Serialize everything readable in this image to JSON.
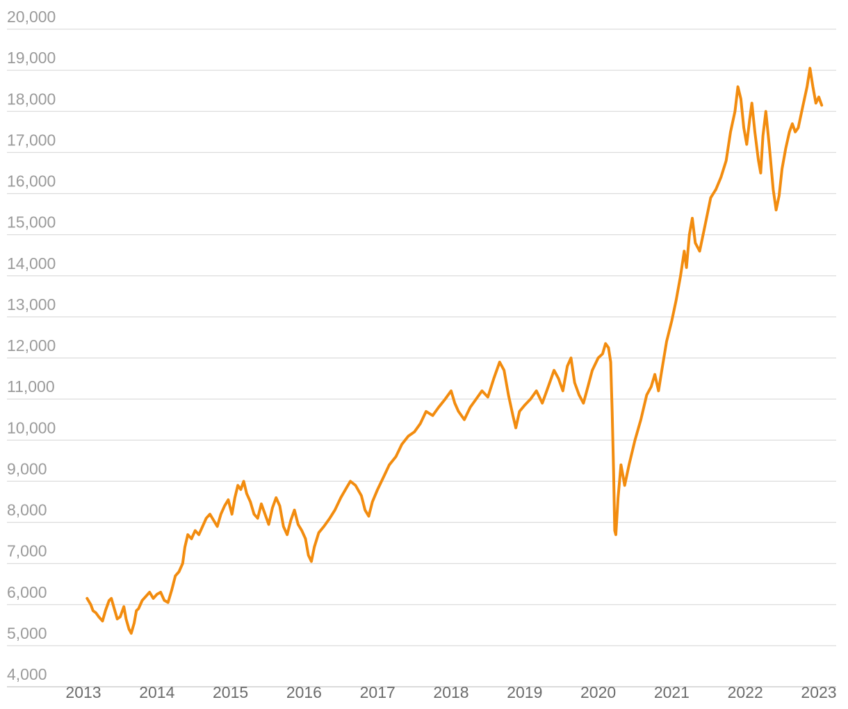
{
  "chart_data": {
    "type": "line",
    "title": "",
    "xlabel": "",
    "ylabel": "",
    "ylim": [
      4000,
      20000
    ],
    "xlim": [
      2013,
      2023.3
    ],
    "grid": true,
    "legend": "none",
    "colors": {
      "line": "#f28c0f",
      "grid": "#dcdcdc",
      "ytick": "#9a9a9a",
      "xtick": "#6b6b6b"
    },
    "y_ticks": [
      "4,000",
      "5,000",
      "6,000",
      "7,000",
      "8,000",
      "9,000",
      "10,000",
      "11,000",
      "12,000",
      "13,000",
      "14,000",
      "15,000",
      "16,000",
      "17,000",
      "18,000",
      "19,000",
      "20,000"
    ],
    "y_tick_values": [
      4000,
      5000,
      6000,
      7000,
      8000,
      9000,
      10000,
      11000,
      12000,
      13000,
      14000,
      15000,
      16000,
      17000,
      18000,
      19000,
      20000
    ],
    "x_ticks": [
      "2013",
      "2014",
      "2015",
      "2016",
      "2017",
      "2018",
      "2019",
      "2020",
      "2021",
      "2022",
      "2023"
    ],
    "x_tick_values": [
      2013,
      2014,
      2015,
      2016,
      2017,
      2018,
      2019,
      2020,
      2021,
      2022,
      2023
    ],
    "series": [
      {
        "values": [
          [
            2013.05,
            6150
          ],
          [
            2013.1,
            6000
          ],
          [
            2013.13,
            5850
          ],
          [
            2013.17,
            5800
          ],
          [
            2013.21,
            5700
          ],
          [
            2013.26,
            5600
          ],
          [
            2013.3,
            5850
          ],
          [
            2013.35,
            6100
          ],
          [
            2013.38,
            6150
          ],
          [
            2013.42,
            5900
          ],
          [
            2013.46,
            5650
          ],
          [
            2013.5,
            5700
          ],
          [
            2013.55,
            5950
          ],
          [
            2013.58,
            5650
          ],
          [
            2013.62,
            5400
          ],
          [
            2013.65,
            5300
          ],
          [
            2013.69,
            5550
          ],
          [
            2013.72,
            5850
          ],
          [
            2013.75,
            5900
          ],
          [
            2013.8,
            6100
          ],
          [
            2013.85,
            6200
          ],
          [
            2013.9,
            6300
          ],
          [
            2013.95,
            6150
          ],
          [
            2014.0,
            6250
          ],
          [
            2014.05,
            6300
          ],
          [
            2014.1,
            6100
          ],
          [
            2014.15,
            6050
          ],
          [
            2014.2,
            6350
          ],
          [
            2014.25,
            6700
          ],
          [
            2014.3,
            6800
          ],
          [
            2014.35,
            7000
          ],
          [
            2014.38,
            7400
          ],
          [
            2014.42,
            7700
          ],
          [
            2014.47,
            7600
          ],
          [
            2014.52,
            7800
          ],
          [
            2014.57,
            7700
          ],
          [
            2014.62,
            7900
          ],
          [
            2014.67,
            8100
          ],
          [
            2014.72,
            8200
          ],
          [
            2014.77,
            8050
          ],
          [
            2014.82,
            7900
          ],
          [
            2014.87,
            8200
          ],
          [
            2014.92,
            8400
          ],
          [
            2014.97,
            8550
          ],
          [
            2015.02,
            8200
          ],
          [
            2015.06,
            8600
          ],
          [
            2015.1,
            8900
          ],
          [
            2015.14,
            8800
          ],
          [
            2015.18,
            9000
          ],
          [
            2015.22,
            8700
          ],
          [
            2015.27,
            8500
          ],
          [
            2015.32,
            8200
          ],
          [
            2015.37,
            8100
          ],
          [
            2015.42,
            8450
          ],
          [
            2015.47,
            8200
          ],
          [
            2015.52,
            7950
          ],
          [
            2015.57,
            8350
          ],
          [
            2015.62,
            8600
          ],
          [
            2015.67,
            8400
          ],
          [
            2015.72,
            7900
          ],
          [
            2015.77,
            7700
          ],
          [
            2015.82,
            8050
          ],
          [
            2015.87,
            8300
          ],
          [
            2015.92,
            7950
          ],
          [
            2015.97,
            7800
          ],
          [
            2016.02,
            7600
          ],
          [
            2016.06,
            7200
          ],
          [
            2016.1,
            7050
          ],
          [
            2016.14,
            7400
          ],
          [
            2016.2,
            7750
          ],
          [
            2016.27,
            7900
          ],
          [
            2016.35,
            8100
          ],
          [
            2016.42,
            8300
          ],
          [
            2016.5,
            8600
          ],
          [
            2016.58,
            8850
          ],
          [
            2016.63,
            9000
          ],
          [
            2016.7,
            8900
          ],
          [
            2016.78,
            8650
          ],
          [
            2016.83,
            8300
          ],
          [
            2016.88,
            8150
          ],
          [
            2016.93,
            8500
          ],
          [
            2017.0,
            8800
          ],
          [
            2017.08,
            9100
          ],
          [
            2017.16,
            9400
          ],
          [
            2017.25,
            9600
          ],
          [
            2017.33,
            9900
          ],
          [
            2017.42,
            10100
          ],
          [
            2017.5,
            10200
          ],
          [
            2017.58,
            10400
          ],
          [
            2017.66,
            10700
          ],
          [
            2017.75,
            10600
          ],
          [
            2017.83,
            10800
          ],
          [
            2017.92,
            11000
          ],
          [
            2018.0,
            11200
          ],
          [
            2018.05,
            10900
          ],
          [
            2018.1,
            10700
          ],
          [
            2018.18,
            10500
          ],
          [
            2018.26,
            10800
          ],
          [
            2018.34,
            11000
          ],
          [
            2018.42,
            11200
          ],
          [
            2018.5,
            11050
          ],
          [
            2018.58,
            11500
          ],
          [
            2018.66,
            11900
          ],
          [
            2018.72,
            11700
          ],
          [
            2018.78,
            11100
          ],
          [
            2018.84,
            10600
          ],
          [
            2018.88,
            10300
          ],
          [
            2018.93,
            10700
          ],
          [
            2019.0,
            10850
          ],
          [
            2019.08,
            11000
          ],
          [
            2019.16,
            11200
          ],
          [
            2019.24,
            10900
          ],
          [
            2019.32,
            11300
          ],
          [
            2019.4,
            11700
          ],
          [
            2019.46,
            11500
          ],
          [
            2019.52,
            11200
          ],
          [
            2019.58,
            11800
          ],
          [
            2019.63,
            12000
          ],
          [
            2019.68,
            11400
          ],
          [
            2019.74,
            11100
          ],
          [
            2019.8,
            10900
          ],
          [
            2019.86,
            11300
          ],
          [
            2019.92,
            11700
          ],
          [
            2020.0,
            12000
          ],
          [
            2020.06,
            12100
          ],
          [
            2020.1,
            12350
          ],
          [
            2020.14,
            12250
          ],
          [
            2020.17,
            11900
          ],
          [
            2020.19,
            10700
          ],
          [
            2020.21,
            9200
          ],
          [
            2020.225,
            7800
          ],
          [
            2020.24,
            7700
          ],
          [
            2020.27,
            8600
          ],
          [
            2020.31,
            9400
          ],
          [
            2020.36,
            8900
          ],
          [
            2020.42,
            9400
          ],
          [
            2020.5,
            10000
          ],
          [
            2020.58,
            10500
          ],
          [
            2020.66,
            11100
          ],
          [
            2020.72,
            11300
          ],
          [
            2020.77,
            11600
          ],
          [
            2020.82,
            11200
          ],
          [
            2020.87,
            11750
          ],
          [
            2020.93,
            12400
          ],
          [
            2021.0,
            12900
          ],
          [
            2021.06,
            13400
          ],
          [
            2021.12,
            14000
          ],
          [
            2021.17,
            14600
          ],
          [
            2021.2,
            14200
          ],
          [
            2021.24,
            15000
          ],
          [
            2021.28,
            15400
          ],
          [
            2021.32,
            14800
          ],
          [
            2021.38,
            14600
          ],
          [
            2021.45,
            15200
          ],
          [
            2021.53,
            15900
          ],
          [
            2021.6,
            16100
          ],
          [
            2021.67,
            16400
          ],
          [
            2021.74,
            16800
          ],
          [
            2021.8,
            17500
          ],
          [
            2021.86,
            18000
          ],
          [
            2021.9,
            18600
          ],
          [
            2021.94,
            18300
          ],
          [
            2021.98,
            17600
          ],
          [
            2022.02,
            17200
          ],
          [
            2022.06,
            17800
          ],
          [
            2022.09,
            18200
          ],
          [
            2022.13,
            17500
          ],
          [
            2022.18,
            16800
          ],
          [
            2022.21,
            16500
          ],
          [
            2022.24,
            17400
          ],
          [
            2022.28,
            18000
          ],
          [
            2022.33,
            17100
          ],
          [
            2022.38,
            16100
          ],
          [
            2022.42,
            15600
          ],
          [
            2022.46,
            15950
          ],
          [
            2022.5,
            16600
          ],
          [
            2022.55,
            17100
          ],
          [
            2022.6,
            17500
          ],
          [
            2022.64,
            17700
          ],
          [
            2022.68,
            17500
          ],
          [
            2022.72,
            17600
          ],
          [
            2022.78,
            18100
          ],
          [
            2022.84,
            18600
          ],
          [
            2022.88,
            19050
          ],
          [
            2022.92,
            18600
          ],
          [
            2022.96,
            18200
          ],
          [
            2023.0,
            18350
          ],
          [
            2023.04,
            18150
          ]
        ]
      }
    ]
  }
}
